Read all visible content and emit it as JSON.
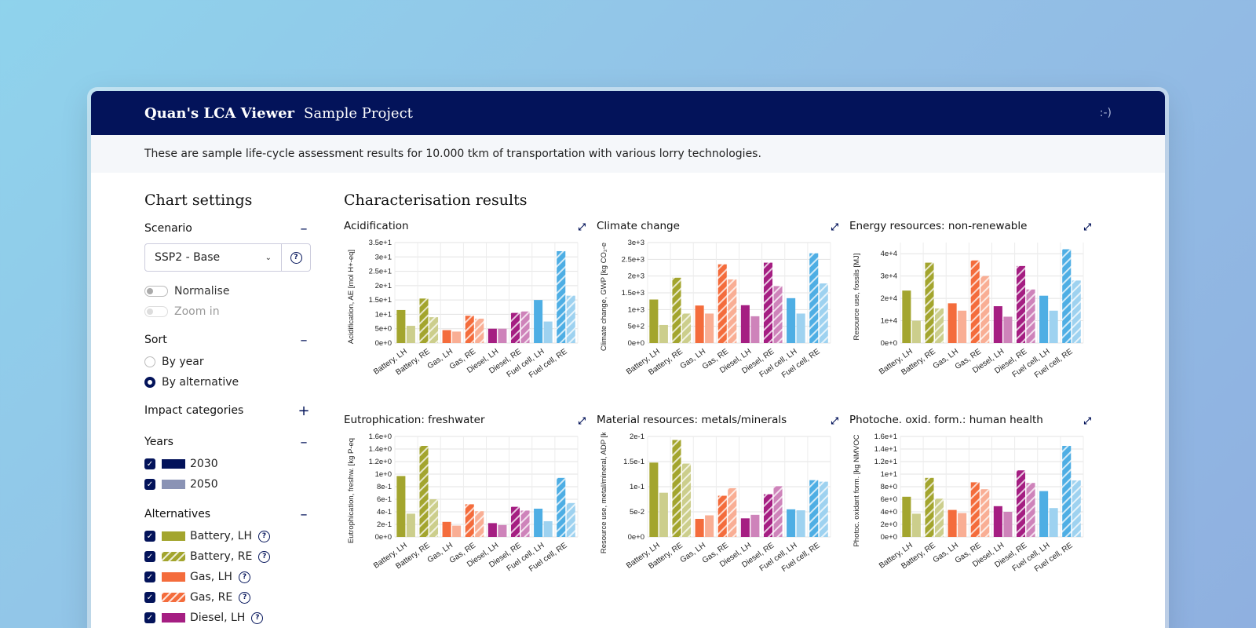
{
  "header": {
    "app_title": "Quan's LCA Viewer",
    "project": "Sample Project",
    "smiley": ":-)"
  },
  "intro": "These are sample life-cycle assessment results for 10.000 tkm of transportation with various lorry technologies.",
  "sidebar": {
    "title": "Chart settings",
    "scenario": {
      "label": "Scenario",
      "value": "SSP2 - Base",
      "normalise": "Normalise",
      "zoom": "Zoom in"
    },
    "sort": {
      "label": "Sort",
      "options": [
        "By year",
        "By alternative"
      ],
      "selected": "By alternative"
    },
    "impact": {
      "label": "Impact categories"
    },
    "years": {
      "label": "Years",
      "items": [
        {
          "label": "2030",
          "color": "#03135a"
        },
        {
          "label": "2050",
          "color": "#8a93b5"
        }
      ]
    },
    "alternatives": {
      "label": "Alternatives",
      "items": [
        {
          "label": "Battery, LH",
          "color": "#a3a52e",
          "hatch": false
        },
        {
          "label": "Battery, RE",
          "color": "#a3a52e",
          "hatch": true
        },
        {
          "label": "Gas, LH",
          "color": "#f46c3c",
          "hatch": false
        },
        {
          "label": "Gas, RE",
          "color": "#f46c3c",
          "hatch": true
        },
        {
          "label": "Diesel, LH",
          "color": "#a51e82",
          "hatch": false
        }
      ]
    },
    "icons": {
      "collapse": "minus-icon",
      "expand": "plus-icon",
      "help": "question-circle-icon",
      "check": "check-icon",
      "dropdown": "chevron-down-icon"
    }
  },
  "main": {
    "title": "Characterisation results"
  },
  "colors": {
    "battery": "#a3a52e",
    "gas": "#f46c3c",
    "diesel": "#a51e82",
    "fuelcell": "#4eaee4"
  },
  "chart_data": [
    {
      "type": "bar",
      "title": "Acidification",
      "ylabel": "Acidification, AE [mol H+-eq]",
      "categories": [
        "Battery, LH",
        "Battery, RE",
        "Gas, LH",
        "Gas, RE",
        "Diesel, LH",
        "Diesel, RE",
        "Fuel cell, LH",
        "Fuel cell, RE"
      ],
      "ticks": [
        "0e+0",
        "5e+0",
        "1e+1",
        "1.5e+1",
        "2e+1",
        "2.5e+1",
        "3e+1",
        "3.5e+1"
      ],
      "ylim": [
        0,
        35
      ],
      "series": [
        {
          "name": "2030",
          "values": [
            11.5,
            15.5,
            4.5,
            9.5,
            5,
            10.5,
            15,
            32
          ]
        },
        {
          "name": "2050",
          "values": [
            6,
            9,
            4,
            8.5,
            5,
            11,
            7.5,
            16.5
          ]
        }
      ]
    },
    {
      "type": "bar",
      "title": "Climate change",
      "ylabel": "Climate change, GWP [kg CO₂-e",
      "categories": [
        "Battery, LH",
        "Battery, RE",
        "Gas, LH",
        "Gas, RE",
        "Diesel, LH",
        "Diesel, RE",
        "Fuel cell, LH",
        "Fuel cell, RE"
      ],
      "ticks": [
        "0e+0",
        "5e+2",
        "1e+3",
        "1.5e+3",
        "2e+3",
        "2.5e+3",
        "3e+3"
      ],
      "ylim": [
        0,
        3000
      ],
      "series": [
        {
          "name": "2030",
          "values": [
            1300,
            1950,
            1120,
            2350,
            1130,
            2400,
            1340,
            2680
          ]
        },
        {
          "name": "2050",
          "values": [
            540,
            880,
            880,
            1900,
            800,
            1700,
            880,
            1780
          ]
        }
      ]
    },
    {
      "type": "bar",
      "title": "Energy resources: non-renewable",
      "ylabel": "Resource use, fossils [MJ]",
      "categories": [
        "Battery, LH",
        "Battery, RE",
        "Gas, LH",
        "Gas, RE",
        "Diesel, LH",
        "Diesel, RE",
        "Fuel cell, LH",
        "Fuel cell, RE"
      ],
      "ticks": [
        "0e+0",
        "1e+4",
        "2e+4",
        "3e+4",
        "4e+4"
      ],
      "ylim": [
        0,
        45000
      ],
      "series": [
        {
          "name": "2030",
          "values": [
            23500,
            36000,
            17800,
            37000,
            16500,
            34500,
            21200,
            42000
          ]
        },
        {
          "name": "2050",
          "values": [
            10000,
            15500,
            14500,
            30000,
            11800,
            24000,
            14500,
            28000
          ]
        }
      ]
    },
    {
      "type": "bar",
      "title": "Eutrophication: freshwater",
      "ylabel": "Eutrophication, freshw. [kg P-eq",
      "categories": [
        "Battery, LH",
        "Battery, RE",
        "Gas, LH",
        "Gas, RE",
        "Diesel, LH",
        "Diesel, RE",
        "Fuel cell, LH",
        "Fuel cell, RE"
      ],
      "ticks": [
        "0e+0",
        "2e-1",
        "4e-1",
        "6e-1",
        "8e-1",
        "1e+0",
        "1.2e+0",
        "1.4e+0",
        "1.6e+0"
      ],
      "ylim": [
        0,
        1.6
      ],
      "series": [
        {
          "name": "2030",
          "values": [
            0.97,
            1.45,
            0.24,
            0.52,
            0.22,
            0.48,
            0.45,
            0.94
          ]
        },
        {
          "name": "2050",
          "values": [
            0.37,
            0.6,
            0.18,
            0.41,
            0.19,
            0.42,
            0.25,
            0.54
          ]
        }
      ]
    },
    {
      "type": "bar",
      "title": "Material resources: metals/minerals",
      "ylabel": "Resource use, metal/mineral, ADP [kg",
      "categories": [
        "Battery, LH",
        "Battery, RE",
        "Gas, LH",
        "Gas, RE",
        "Diesel, LH",
        "Diesel, RE",
        "Fuel cell, LH",
        "Fuel cell, RE"
      ],
      "ticks": [
        "0e+0",
        "5e-2",
        "1e-1",
        "1.5e-1",
        "2e-1"
      ],
      "ylim": [
        0,
        0.2
      ],
      "series": [
        {
          "name": "2030",
          "values": [
            0.148,
            0.193,
            0.036,
            0.082,
            0.037,
            0.085,
            0.055,
            0.113
          ]
        },
        {
          "name": "2050",
          "values": [
            0.088,
            0.146,
            0.043,
            0.097,
            0.044,
            0.101,
            0.053,
            0.11
          ]
        }
      ]
    },
    {
      "type": "bar",
      "title": "Photoche. oxid. form.: human health",
      "ylabel": "Photoc. oxidant form. [kg NMVOC",
      "categories": [
        "Battery, LH",
        "Battery, RE",
        "Gas, LH",
        "Gas, RE",
        "Diesel, LH",
        "Diesel, RE",
        "Fuel cell, LH",
        "Fuel cell, RE"
      ],
      "ticks": [
        "0e+0",
        "2e+0",
        "4e+0",
        "6e+0",
        "8e+0",
        "1e+1",
        "1.2e+1",
        "1.4e+1",
        "1.6e+1"
      ],
      "ylim": [
        0,
        16
      ],
      "series": [
        {
          "name": "2030",
          "values": [
            6.4,
            9.4,
            4.3,
            8.7,
            4.9,
            10.6,
            7.3,
            14.5
          ]
        },
        {
          "name": "2050",
          "values": [
            3.7,
            6.1,
            3.8,
            7.6,
            4,
            8.6,
            4.6,
            9
          ]
        }
      ]
    }
  ]
}
